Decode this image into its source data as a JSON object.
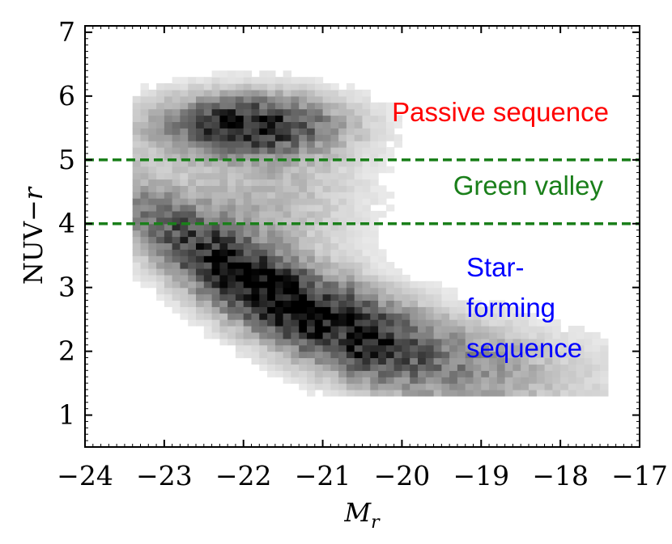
{
  "chart_data": {
    "type": "heatmap",
    "xlabel": "M_r",
    "xlabel_main": "M",
    "xlabel_sub": "r",
    "ylabel": "NUV−r",
    "ylabel_main": "NUV−",
    "ylabel_italic": "r",
    "xlim": [
      -24,
      -17
    ],
    "ylim": [
      0.5,
      7.1
    ],
    "x_ticks": [
      -24,
      -23,
      -22,
      -21,
      -20,
      -19,
      -18,
      -17
    ],
    "x_tick_labels": [
      "−24",
      "−23",
      "−22",
      "−21",
      "−20",
      "−19",
      "−18",
      "−17"
    ],
    "y_ticks": [
      1,
      2,
      3,
      4,
      5,
      6,
      7
    ],
    "y_tick_labels": [
      "1",
      "2",
      "3",
      "4",
      "5",
      "6",
      "7"
    ],
    "colormap": "grayscale (white = low density, black = high density)",
    "density_components": [
      {
        "region": "passive sequence",
        "x_center": -21.9,
        "y_center": 5.55,
        "relative_peak": 0.85
      },
      {
        "region": "star-forming sequence",
        "x_center": -21.5,
        "y_center": 2.8,
        "relative_peak": 1.0
      }
    ],
    "reference_lines": [
      {
        "y": 5.0,
        "style": "dashed",
        "color": "#1a7f1a"
      },
      {
        "y": 4.0,
        "style": "dashed",
        "color": "#1a7f1a"
      }
    ],
    "annotations": [
      {
        "lines": [
          "Passive sequence"
        ],
        "color": "#ff0000"
      },
      {
        "lines": [
          "Green valley"
        ],
        "color": "#1a7f1a"
      },
      {
        "lines": [
          "Star-",
          "forming",
          "sequence"
        ],
        "color": "#0000ff"
      }
    ]
  }
}
